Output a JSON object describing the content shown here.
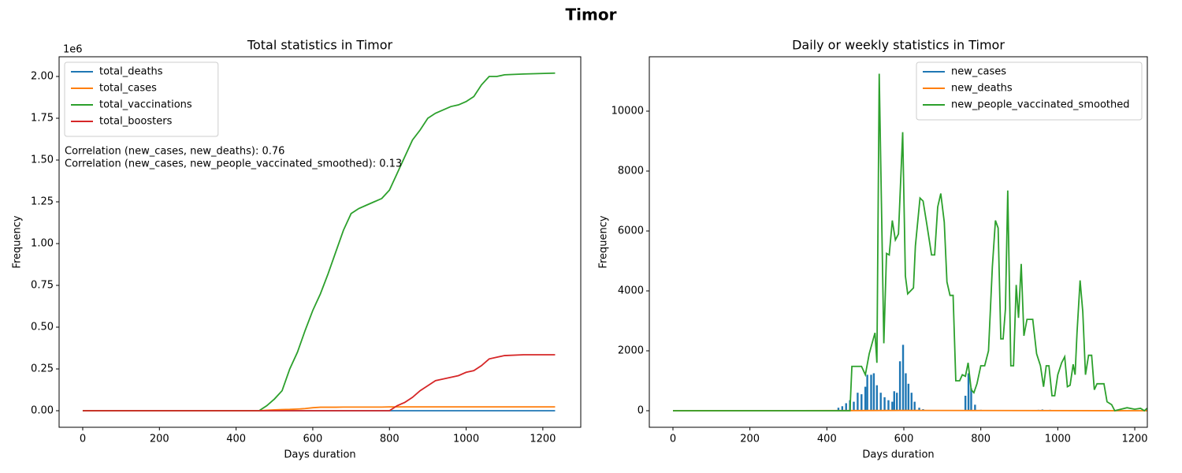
{
  "title": "Timor",
  "chart_data": [
    {
      "type": "line",
      "title": "Total statistics in Timor",
      "x_label": "Days duration",
      "y_label": "Frequency",
      "y_scale_label": "1e6",
      "xlim": [
        -61.6,
        1298.9
      ],
      "ylim": [
        -0.099,
        2.118
      ],
      "xticks": [
        0,
        200,
        400,
        600,
        800,
        1000,
        1200
      ],
      "yticks": [
        {
          "value": 0,
          "label": "0.00"
        },
        {
          "value": 0.25,
          "label": "0.25"
        },
        {
          "value": 0.5,
          "label": "0.50"
        },
        {
          "value": 0.75,
          "label": "0.75"
        },
        {
          "value": 1,
          "label": "1.00"
        },
        {
          "value": 1.25,
          "label": "1.25"
        },
        {
          "value": 1.5,
          "label": "1.50"
        },
        {
          "value": 1.75,
          "label": "1.75"
        },
        {
          "value": 2,
          "label": "2.00"
        }
      ],
      "legend": "upper left",
      "annotations": [
        "Correlation (new_cases, new_deaths): 0.76",
        "Correlation (new_cases, new_people_vaccinated_smoothed): 0.13"
      ],
      "x": [
        0,
        100,
        200,
        300,
        400,
        460,
        480,
        500,
        520,
        540,
        560,
        580,
        600,
        620,
        640,
        660,
        680,
        700,
        720,
        740,
        760,
        780,
        800,
        820,
        840,
        860,
        880,
        900,
        920,
        940,
        960,
        980,
        1000,
        1020,
        1040,
        1060,
        1080,
        1100,
        1150,
        1232
      ],
      "series": [
        {
          "name": "total_deaths",
          "color": "#1f77b4",
          "values": [
            0,
            0,
            0,
            0,
            0,
            0,
            0,
            0,
            0,
            0,
            0,
            0,
            0,
            0,
            0,
            0,
            0,
            0,
            0,
            0,
            0,
            0,
            0,
            0,
            0,
            0,
            0,
            0,
            0,
            0,
            0,
            0,
            0,
            0,
            0,
            0,
            0,
            0,
            0,
            0
          ]
        },
        {
          "name": "total_cases",
          "color": "#ff7f0e",
          "values": [
            0,
            0,
            0,
            0,
            0,
            0,
            0.003,
            0.005,
            0.007,
            0.008,
            0.01,
            0.013,
            0.018,
            0.021,
            0.021,
            0.021,
            0.022,
            0.022,
            0.022,
            0.022,
            0.022,
            0.022,
            0.023,
            0.023,
            0.023,
            0.023,
            0.023,
            0.023,
            0.023,
            0.023,
            0.023,
            0.023,
            0.023,
            0.023,
            0.023,
            0.023,
            0.023,
            0.023,
            0.023,
            0.023
          ]
        },
        {
          "name": "total_vaccinations",
          "color": "#2ca02c",
          "values": [
            0,
            0,
            0,
            0,
            0,
            0,
            0.03,
            0.07,
            0.12,
            0.25,
            0.35,
            0.48,
            0.6,
            0.7,
            0.82,
            0.95,
            1.08,
            1.18,
            1.21,
            1.23,
            1.25,
            1.27,
            1.32,
            1.42,
            1.52,
            1.62,
            1.68,
            1.75,
            1.78,
            1.8,
            1.82,
            1.83,
            1.85,
            1.88,
            1.95,
            2.0,
            2.0,
            2.01,
            2.015,
            2.02
          ]
        },
        {
          "name": "total_boosters",
          "color": "#d62728",
          "values": [
            0,
            0,
            0,
            0,
            0,
            0,
            0,
            0,
            0,
            0,
            0,
            0,
            0,
            0,
            0,
            0,
            0,
            0,
            0,
            0,
            0,
            0,
            0,
            0.03,
            0.05,
            0.08,
            0.12,
            0.15,
            0.18,
            0.19,
            0.2,
            0.21,
            0.23,
            0.24,
            0.27,
            0.31,
            0.32,
            0.33,
            0.335,
            0.335
          ]
        }
      ]
    },
    {
      "type": "line",
      "title": "Daily or weekly statistics in Timor",
      "x_label": "Days duration",
      "y_label": "Frequency",
      "xlim": [
        -61.4,
        1232.7
      ],
      "ylim": [
        -553,
        11816
      ],
      "xticks": [
        0,
        200,
        400,
        600,
        800,
        1000,
        1200
      ],
      "yticks": [
        0,
        2000,
        4000,
        6000,
        8000,
        10000
      ],
      "legend": "upper right",
      "series": [
        {
          "name": "new_cases",
          "color": "#1f77b4",
          "mark": "bar",
          "x": [
            430,
            440,
            450,
            460,
            470,
            480,
            490,
            500,
            505,
            515,
            522,
            530,
            540,
            550,
            560,
            570,
            575,
            582,
            590,
            598,
            605,
            612,
            620,
            628,
            640,
            650,
            760,
            768,
            775,
            785,
            800,
            950,
            960,
            980
          ],
          "values": [
            100,
            150,
            250,
            350,
            300,
            600,
            550,
            800,
            1200,
            1200,
            1250,
            850,
            600,
            450,
            350,
            300,
            650,
            600,
            1650,
            2200,
            1250,
            900,
            600,
            300,
            100,
            50,
            500,
            1250,
            750,
            200,
            30,
            30,
            40,
            30
          ]
        },
        {
          "name": "new_deaths",
          "color": "#ff7f0e",
          "x": [
            0,
            460,
            600,
            1232
          ],
          "values": [
            0,
            5,
            10,
            0
          ]
        },
        {
          "name": "new_people_vaccinated_smoothed",
          "color": "#2ca02c",
          "x": [
            0,
            400,
            460,
            465,
            490,
            500,
            510,
            525,
            530,
            536,
            548,
            555,
            562,
            570,
            578,
            586,
            597,
            604,
            610,
            625,
            630,
            642,
            650,
            660,
            672,
            680,
            688,
            696,
            705,
            712,
            720,
            728,
            735,
            745,
            752,
            760,
            767,
            775,
            782,
            790,
            800,
            810,
            820,
            830,
            838,
            845,
            852,
            858,
            864,
            870,
            878,
            885,
            892,
            898,
            905,
            912,
            920,
            935,
            945,
            955,
            963,
            970,
            977,
            985,
            992,
            1000,
            1010,
            1018,
            1025,
            1032,
            1040,
            1045,
            1050,
            1058,
            1065,
            1072,
            1080,
            1088,
            1095,
            1102,
            1110,
            1120,
            1128,
            1140,
            1148,
            1180,
            1200,
            1215,
            1225,
            1232
          ],
          "values": [
            0,
            0,
            0,
            1480,
            1480,
            1200,
            1900,
            2600,
            1600,
            11250,
            2250,
            5250,
            5200,
            6350,
            5700,
            5900,
            9300,
            4500,
            3900,
            4100,
            5500,
            7100,
            7000,
            6200,
            5200,
            5200,
            6800,
            7250,
            6300,
            4300,
            3850,
            3850,
            1000,
            1000,
            1200,
            1150,
            1600,
            700,
            600,
            900,
            1500,
            1500,
            2000,
            4800,
            6350,
            6100,
            2400,
            2400,
            3400,
            7350,
            1500,
            1500,
            4200,
            3100,
            4900,
            2500,
            3050,
            3050,
            1900,
            1500,
            800,
            1500,
            1500,
            500,
            500,
            1200,
            1600,
            1800,
            800,
            850,
            1550,
            1200,
            2600,
            4350,
            3300,
            1200,
            1850,
            1850,
            700,
            900,
            900,
            900,
            300,
            200,
            0,
            100,
            50,
            80,
            0,
            80
          ]
        }
      ]
    }
  ]
}
